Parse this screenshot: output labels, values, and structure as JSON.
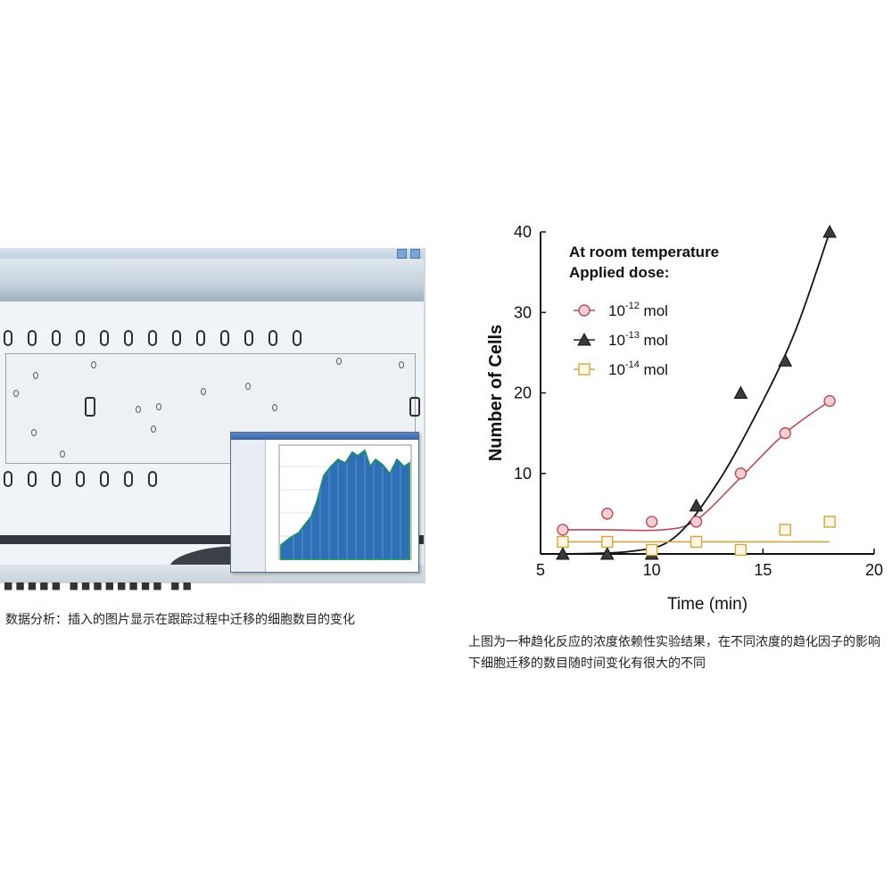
{
  "screenshot": {
    "bottom_text": "■■■■■ ■■■■■■■■ ■■",
    "icon": "microfluidic-chip-screenshot"
  },
  "caption_left": "数据分析：插入的图片显示在跟踪过程中迁移的细胞数目的变化",
  "caption_right": "上图为一种趋化反应的浓度依赖性实验结果，在不同浓度的趋化因子的影响下细胞迁移的数目随时间变化有很大的不同",
  "chart_data": {
    "type": "scatter",
    "xlabel": "Time (min)",
    "ylabel": "Number of Cells",
    "xlim": [
      5,
      20
    ],
    "ylim": [
      0,
      40
    ],
    "xticks": [
      5,
      10,
      15,
      20
    ],
    "yticks": [
      10,
      20,
      30,
      40
    ],
    "legend_title": [
      "At room temperature",
      "Applied dose:"
    ],
    "legend_position": "top-left",
    "series": [
      {
        "name": "10-12 mol",
        "base": "10",
        "exp": "-12",
        "unit": "mol",
        "marker": "circle",
        "color": "#b64b5c",
        "x": [
          6,
          8,
          10,
          12,
          14,
          16,
          18
        ],
        "y": [
          3,
          5,
          4,
          4,
          10,
          15,
          19
        ]
      },
      {
        "name": "10-13 mol",
        "base": "10",
        "exp": "-13",
        "unit": "mol",
        "marker": "triangle",
        "color": "#222222",
        "x": [
          6,
          8,
          10,
          12,
          14,
          16,
          18
        ],
        "y": [
          0,
          0,
          0,
          6,
          20,
          24,
          40
        ]
      },
      {
        "name": "10-14 mol",
        "base": "10",
        "exp": "-14",
        "unit": "mol",
        "marker": "square",
        "color": "#d2a642",
        "x": [
          6,
          8,
          10,
          12,
          14,
          16,
          18
        ],
        "y": [
          1.5,
          1.5,
          0.5,
          1.5,
          0.5,
          3,
          4
        ]
      }
    ],
    "grid": false
  }
}
